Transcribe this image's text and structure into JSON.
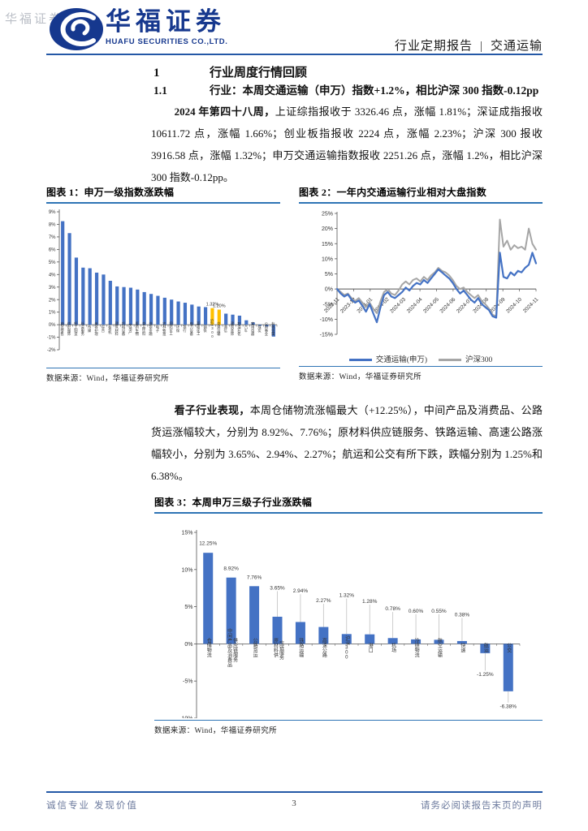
{
  "watermark": "华福证券",
  "header": {
    "logo_title": "华福证券",
    "logo_subtitle": "HUAFU SECURITIES CO.,LTD.",
    "report_type": "行业定期报告",
    "separator": "|",
    "industry": "交通运输"
  },
  "sections": {
    "h1_num": "1",
    "h1_title": "行业周度行情回顾",
    "h2_num": "1.1",
    "h2_title": "行业：本周交通运输（申万）指数+1.2%，相比沪深 300 指数-0.12pp",
    "para1_lead": "2024 年第四十八周，",
    "para1_rest": "上证综指报收于 3326.46 点，涨幅 1.81%；深证成指报收 10611.72 点，涨幅 1.66%；创业板指报收 2224 点，涨幅 2.23%；沪深 300 报收 3916.58 点，涨幅 1.32%；申万交通运输指数报收 2251.26 点，涨幅 1.2%，相比沪深 300 指数-0.12pp。",
    "para2_lead": "看子行业表现，",
    "para2_rest": "本周仓储物流涨幅最大（+12.25%），中间产品及消费品、公路货运涨幅较大，分别为 8.92%、7.76%；原材料供应链服务、铁路运输、高速公路涨幅较小，分别为 3.65%、2.94%、2.27%；航运和公交有所下跌，跌幅分别为 1.25%和 6.38%。"
  },
  "figures": {
    "fig1_caption": "图表 1：申万一级指数涨跌幅",
    "fig2_caption": "图表 2：一年内交通运输行业相对大盘指数",
    "fig3_caption": "图表 3：本周申万三级子行业涨跌幅",
    "source": "数据来源：Wind，华福证券研究所"
  },
  "footer": {
    "left": "诚信专业  发现价值",
    "page": "3",
    "right": "请务必阅读报告末页的声明"
  },
  "colors": {
    "bar_blue": "#4472C4",
    "bar_yellow": "#FFC000",
    "line_gray": "#A6A6A6",
    "rule_blue": "#2458A6",
    "caption_underline": "#2E74B5",
    "logo_blue": "#16388E"
  },
  "chart_data": [
    {
      "type": "bar",
      "title": "申万一级指数涨跌幅",
      "ylim": [
        -2,
        9
      ],
      "ytick_step": 1,
      "grid": false,
      "categories": [
        "商贸零售",
        "纺织服饰",
        "轻工制造",
        "社会服务",
        "传媒",
        "美容护理",
        "综合",
        "计算机",
        "建筑材料",
        "机械设备",
        "房地产",
        "医药生物",
        "食品饮料",
        "非银金融",
        "电子",
        "农林牧渔",
        "国防军工",
        "环保",
        "银行",
        "电力设备",
        "基础化工",
        "钢铁",
        "沪深300",
        "交通运输",
        "通信",
        "建筑装饰",
        "石油石化",
        "汽车",
        "家用电器",
        "煤炭",
        "公用事业",
        "有色金属"
      ],
      "values": [
        8.25,
        7.3,
        5.35,
        4.55,
        4.5,
        4.15,
        4.0,
        3.5,
        3.05,
        3.0,
        2.95,
        2.8,
        2.6,
        2.45,
        2.3,
        2.15,
        2.0,
        1.85,
        1.75,
        1.6,
        1.45,
        1.4,
        1.32,
        1.2,
        0.88,
        0.8,
        0.72,
        0.35,
        0.18,
        -0.08,
        -0.15,
        -0.95
      ],
      "bar_color": "#4472C4",
      "highlight_color": "#FFC000",
      "highlight_indices": [
        22,
        23
      ],
      "value_labels": {
        "22": "1.32%",
        "23": "1.20%"
      }
    },
    {
      "type": "line",
      "title": "一年内交通运输行业相对大盘指数",
      "ylim": [
        -15,
        25
      ],
      "ytick_step": 5,
      "grid": false,
      "legend_position": "bottom",
      "x_labels": [
        "2023-11",
        "2023-12",
        "2024-01",
        "2024-02",
        "2024-03",
        "2024-04",
        "2024-05",
        "2024-06",
        "2024-07",
        "2024-08",
        "2024-09",
        "2024-10",
        "2024-11"
      ],
      "series": [
        {
          "name": "交通运输(申万)",
          "color": "#4472C4",
          "values": [
            0,
            -1.5,
            -2.5,
            -1.8,
            -3.5,
            -4.5,
            -3.8,
            -5.5,
            -7.5,
            -5,
            -8,
            -11,
            -6,
            -2,
            -1,
            -2.5,
            -3,
            -2,
            -1,
            0.5,
            -0.5,
            1,
            2,
            1.5,
            3,
            2,
            3.5,
            5,
            6.5,
            5.5,
            4.5,
            3.5,
            2,
            0,
            -1.5,
            -0.5,
            -2,
            -3.5,
            -4.5,
            -3,
            -5,
            -6,
            -7,
            -9,
            -9.5,
            12,
            4,
            3.5,
            5.5,
            4.5,
            6,
            5.5,
            7,
            8,
            12,
            8.5
          ]
        },
        {
          "name": "沪深300",
          "color": "#A6A6A6",
          "values": [
            0,
            -1,
            -2,
            -1.5,
            -3,
            -4,
            -3,
            -4.5,
            -6,
            -4.5,
            -6.5,
            -8,
            -4,
            -1,
            0,
            -1.5,
            -2,
            -0.5,
            1.5,
            2.5,
            1.5,
            3,
            3.5,
            2.5,
            4,
            3,
            4.5,
            5.5,
            7,
            6,
            5.5,
            4.5,
            3,
            1,
            0,
            0.5,
            -1,
            -2,
            -3,
            -2,
            -4,
            -5,
            -6.5,
            -8.5,
            -9,
            23,
            14,
            16,
            13,
            14.5,
            13.5,
            14,
            13,
            20,
            15,
            13
          ]
        }
      ]
    },
    {
      "type": "bar",
      "title": "本周申万三级子行业涨跌幅",
      "ylim": [
        -10,
        15
      ],
      "ytick_step": 5,
      "grid": false,
      "categories": [
        "仓储物流",
        "中间产品及消费品供应链服务",
        "公路货运",
        "原材料供应链服务",
        "铁路运输",
        "高速公路",
        "沪深300",
        "港口",
        "机场",
        "冷链物流",
        "航空运输",
        "快递",
        "航运",
        "公交"
      ],
      "values": [
        12.25,
        8.92,
        7.76,
        3.65,
        2.94,
        2.27,
        1.32,
        1.28,
        0.78,
        0.6,
        0.55,
        0.38,
        -1.25,
        -6.38
      ],
      "bar_color": "#4472C4",
      "value_label_format": "percent2",
      "label_levels": [
        13.3,
        9.95,
        8.75,
        7.3,
        6.9,
        5.6,
        6.3,
        5.5,
        4.5,
        4.2,
        4.2,
        3.7,
        -3.6,
        -7.9
      ]
    }
  ]
}
